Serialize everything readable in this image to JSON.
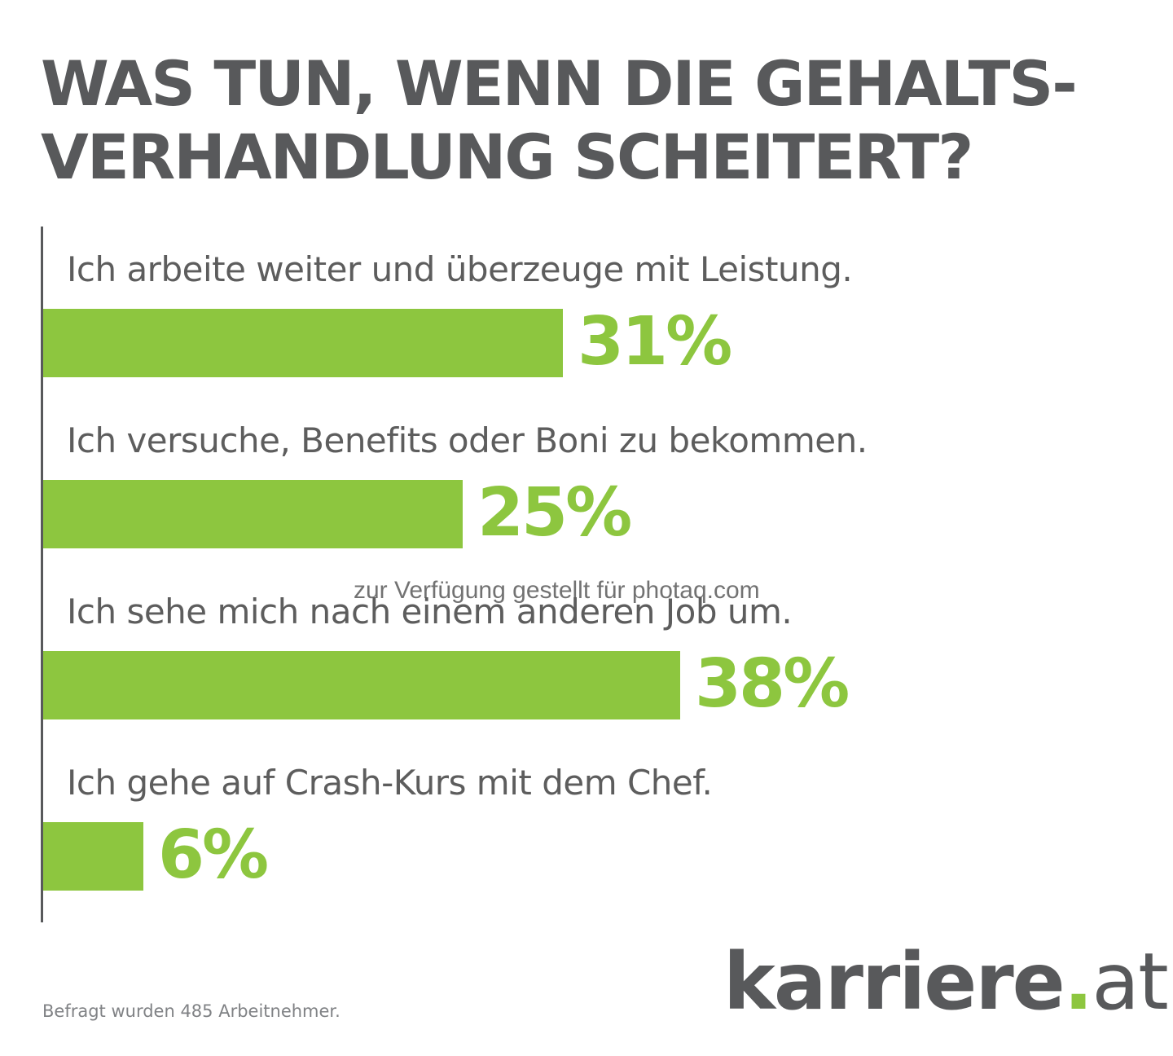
{
  "title": {
    "line1": "WAS TUN, WENN DIE GEHALTS-",
    "line2": "VERHANDLUNG SCHEITERT?"
  },
  "chart_data": {
    "type": "bar",
    "orientation": "horizontal",
    "title": "WAS TUN, WENN DIE GEHALTS- VERHANDLUNG SCHEITERT?",
    "unit": "%",
    "categories": [
      "Ich arbeite weiter und überzeuge mit Leistung.",
      "Ich versuche, Benefits oder Boni zu bekommen.",
      "Ich sehe mich nach einem anderen Job um.",
      "Ich gehe auf Crash-Kurs mit dem Chef."
    ],
    "values": [
      31,
      25,
      38,
      6
    ],
    "value_labels": [
      "31%",
      "25%",
      "38%",
      "6%"
    ],
    "bar_color": "#8dc63f",
    "xlabel": "",
    "ylabel": ""
  },
  "watermark": "zur Verfügung gestellt für photaq.com",
  "footnote": "Befragt wurden 485 Arbeitnehmer.",
  "logo": {
    "brand": "karriere",
    "dot": ".",
    "tld": "at"
  },
  "colors": {
    "accent_green": "#8dc63f",
    "text_gray": "#58595b"
  }
}
